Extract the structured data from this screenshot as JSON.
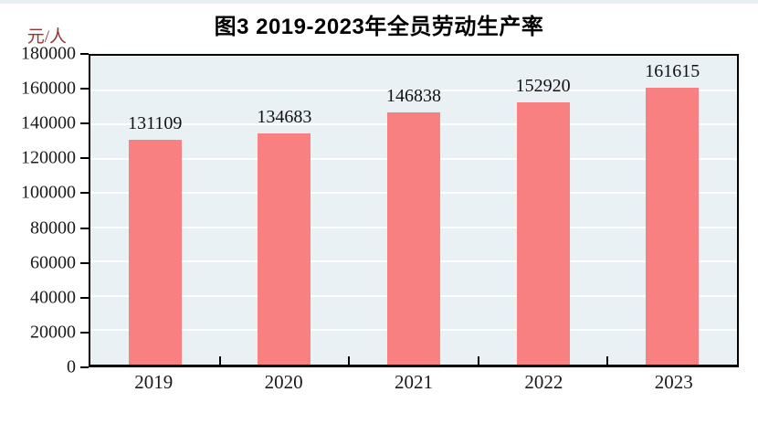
{
  "page": {
    "top_strip_color": "#e8eff3"
  },
  "chart": {
    "title": "图3  2019-2023年全员劳动生产率",
    "unit_label": "元/人"
  },
  "chart_data": {
    "type": "bar",
    "title": "图3  2019-2023年全员劳动生产率",
    "xlabel": "",
    "ylabel": "元/人",
    "categories": [
      "2019",
      "2020",
      "2021",
      "2022",
      "2023"
    ],
    "values": [
      131109,
      134683,
      146838,
      152920,
      161615
    ],
    "data_labels": [
      "131109",
      "134683",
      "146838",
      "152920",
      "161615"
    ],
    "ylim": [
      0,
      180000
    ],
    "ytick_step": 20000,
    "grid": true,
    "legend": false,
    "colors": {
      "bar": "#f98080",
      "plot_background": "#e9f1f4",
      "gridline": "#ffffff",
      "axis": "#000000",
      "unit_label": "#943634",
      "tick_text": "#1a1a1a",
      "title_text": "#000000"
    }
  }
}
